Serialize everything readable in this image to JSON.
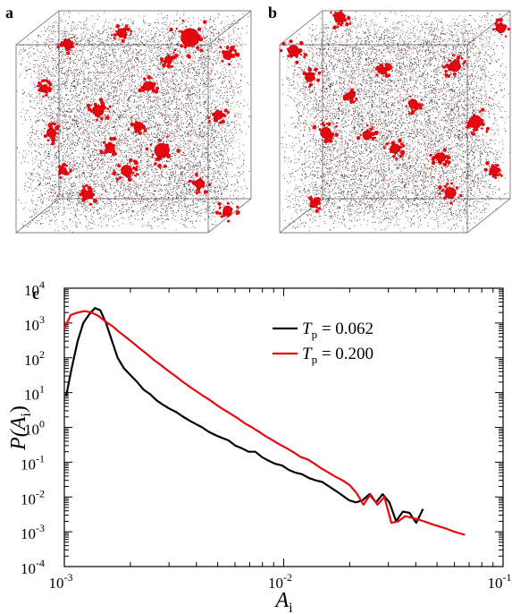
{
  "panels": {
    "a": {
      "label": "a"
    },
    "b": {
      "label": "b"
    },
    "c": {
      "label": "c"
    }
  },
  "colors": {
    "matrix_points": "#000000",
    "highlight": "#e8070e",
    "series_062": "#000000",
    "series_200": "#e8070e"
  },
  "chart_data": {
    "type": "line",
    "title": "",
    "xlabel": {
      "main": "A",
      "sub": "i"
    },
    "ylabel": {
      "pre": "P(",
      "main": "A",
      "sub": "i",
      "post": ")"
    },
    "xscale": "log",
    "yscale": "log",
    "xlim": [
      0.001,
      0.1
    ],
    "ylim": [
      0.0001,
      10000
    ],
    "xticks": [
      {
        "value": 0.001,
        "base": "10",
        "exp": "-3"
      },
      {
        "value": 0.01,
        "base": "10",
        "exp": "-2"
      },
      {
        "value": 0.1,
        "base": "10",
        "exp": "-1"
      }
    ],
    "yticks": [
      {
        "value": 0.0001,
        "base": "10",
        "exp": "-4"
      },
      {
        "value": 0.001,
        "base": "10",
        "exp": "-3"
      },
      {
        "value": 0.01,
        "base": "10",
        "exp": "-2"
      },
      {
        "value": 0.1,
        "base": "10",
        "exp": "-1"
      },
      {
        "value": 1,
        "base": "10",
        "exp": "0"
      },
      {
        "value": 10,
        "base": "10",
        "exp": "1"
      },
      {
        "value": 100,
        "base": "10",
        "exp": "2"
      },
      {
        "value": 1000,
        "base": "10",
        "exp": "3"
      },
      {
        "value": 10000,
        "base": "10",
        "exp": "4"
      }
    ],
    "legend_position": "top-right",
    "grid": false,
    "series": [
      {
        "name": "T",
        "name_sub": "p",
        "name_value": " = 0.062",
        "color": "#000000",
        "points": [
          [
            0.00102,
            8
          ],
          [
            0.00108,
            50
          ],
          [
            0.00115,
            300
          ],
          [
            0.00122,
            1000
          ],
          [
            0.0013,
            1800
          ],
          [
            0.00138,
            2700
          ],
          [
            0.00146,
            2300
          ],
          [
            0.00155,
            1000
          ],
          [
            0.00165,
            300
          ],
          [
            0.00175,
            100
          ],
          [
            0.00187,
            50
          ],
          [
            0.002,
            32
          ],
          [
            0.00215,
            20
          ],
          [
            0.0023,
            12
          ],
          [
            0.00246,
            9
          ],
          [
            0.00263,
            6
          ],
          [
            0.00281,
            4.5
          ],
          [
            0.003,
            3.5
          ],
          [
            0.00322,
            2.8
          ],
          [
            0.00345,
            2.1
          ],
          [
            0.0037,
            1.6
          ],
          [
            0.00397,
            1.25
          ],
          [
            0.00425,
            1.0
          ],
          [
            0.00455,
            0.75
          ],
          [
            0.00488,
            0.6
          ],
          [
            0.00523,
            0.5
          ],
          [
            0.00561,
            0.42
          ],
          [
            0.00601,
            0.3
          ],
          [
            0.00645,
            0.25
          ],
          [
            0.00692,
            0.2
          ],
          [
            0.00742,
            0.2
          ],
          [
            0.00796,
            0.14
          ],
          [
            0.00854,
            0.11
          ],
          [
            0.00916,
            0.09
          ],
          [
            0.00983,
            0.08
          ],
          [
            0.01055,
            0.06
          ],
          [
            0.01132,
            0.05
          ],
          [
            0.01215,
            0.045
          ],
          [
            0.01303,
            0.035
          ],
          [
            0.01398,
            0.03
          ],
          [
            0.015,
            0.027
          ],
          [
            0.0161,
            0.02
          ],
          [
            0.01727,
            0.015
          ],
          [
            0.01853,
            0.011
          ],
          [
            0.01988,
            0.008
          ],
          [
            0.02133,
            0.007
          ],
          [
            0.02289,
            0.008
          ],
          [
            0.02456,
            0.012
          ],
          [
            0.02635,
            0.007
          ],
          [
            0.02827,
            0.012
          ],
          [
            0.03034,
            0.007
          ],
          [
            0.03255,
            0.002
          ],
          [
            0.03492,
            0.0038
          ],
          [
            0.03747,
            0.0035
          ],
          [
            0.0402,
            0.0018
          ],
          [
            0.04314,
            0.0045
          ]
        ]
      },
      {
        "name": "T",
        "name_sub": "p",
        "name_value": " = 0.200",
        "color": "#e8070e",
        "points": [
          [
            0.001,
            700
          ],
          [
            0.00107,
            1700
          ],
          [
            0.00115,
            2000
          ],
          [
            0.00124,
            2200
          ],
          [
            0.00133,
            2000
          ],
          [
            0.00143,
            1600
          ],
          [
            0.00154,
            1100
          ],
          [
            0.00166,
            800
          ],
          [
            0.00178,
            550
          ],
          [
            0.00192,
            380
          ],
          [
            0.00207,
            260
          ],
          [
            0.00222,
            180
          ],
          [
            0.00239,
            125
          ],
          [
            0.00257,
            85
          ],
          [
            0.00277,
            60
          ],
          [
            0.00298,
            42
          ],
          [
            0.00321,
            30
          ],
          [
            0.00345,
            21
          ],
          [
            0.00371,
            15
          ],
          [
            0.00399,
            11
          ],
          [
            0.0043,
            8
          ],
          [
            0.00462,
            6
          ],
          [
            0.00497,
            4.3
          ],
          [
            0.00535,
            3.2
          ],
          [
            0.00576,
            2.4
          ],
          [
            0.00619,
            1.8
          ],
          [
            0.00666,
            1.3
          ],
          [
            0.00717,
            1.0
          ],
          [
            0.00771,
            0.75
          ],
          [
            0.0083,
            0.55
          ],
          [
            0.00893,
            0.42
          ],
          [
            0.0096,
            0.32
          ],
          [
            0.01033,
            0.25
          ],
          [
            0.01112,
            0.19
          ],
          [
            0.01196,
            0.14
          ],
          [
            0.01287,
            0.12
          ],
          [
            0.01385,
            0.09
          ],
          [
            0.0149,
            0.065
          ],
          [
            0.01603,
            0.05
          ],
          [
            0.01724,
            0.038
          ],
          [
            0.01855,
            0.03
          ],
          [
            0.01996,
            0.022
          ],
          [
            0.02148,
            0.013
          ],
          [
            0.02311,
            0.006
          ],
          [
            0.02486,
            0.012
          ],
          [
            0.02675,
            0.006
          ],
          [
            0.02878,
            0.01
          ],
          [
            0.03097,
            0.0018
          ],
          [
            0.03332,
            0.002
          ],
          [
            0.03585,
            0.0028
          ],
          [
            0.03857,
            0.0025
          ],
          [
            0.0415,
            0.0022
          ],
          [
            0.04465,
            0.0019
          ],
          [
            0.04804,
            0.0016
          ],
          [
            0.05169,
            0.0014
          ],
          [
            0.05561,
            0.0012
          ],
          [
            0.05984,
            0.001
          ],
          [
            0.06438,
            0.00088
          ],
          [
            0.067,
            0.00082
          ]
        ]
      }
    ]
  }
}
